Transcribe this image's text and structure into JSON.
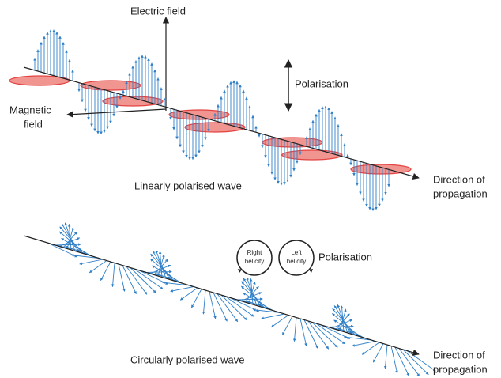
{
  "linear": {
    "electric_field": "Electric field",
    "polarisation": "Polarisation",
    "magnetic_field": [
      "Magnetic",
      "field"
    ],
    "direction": [
      "Direction of",
      "propagation"
    ],
    "caption": "Linearly polarised wave"
  },
  "circular": {
    "right_helicity": [
      "Right",
      "helicity"
    ],
    "left_helicity": [
      "Left",
      "helicity"
    ],
    "polarisation": "Polarisation",
    "direction": [
      "Direction of",
      "propagation"
    ],
    "caption": "Circularly polarised wave"
  }
}
